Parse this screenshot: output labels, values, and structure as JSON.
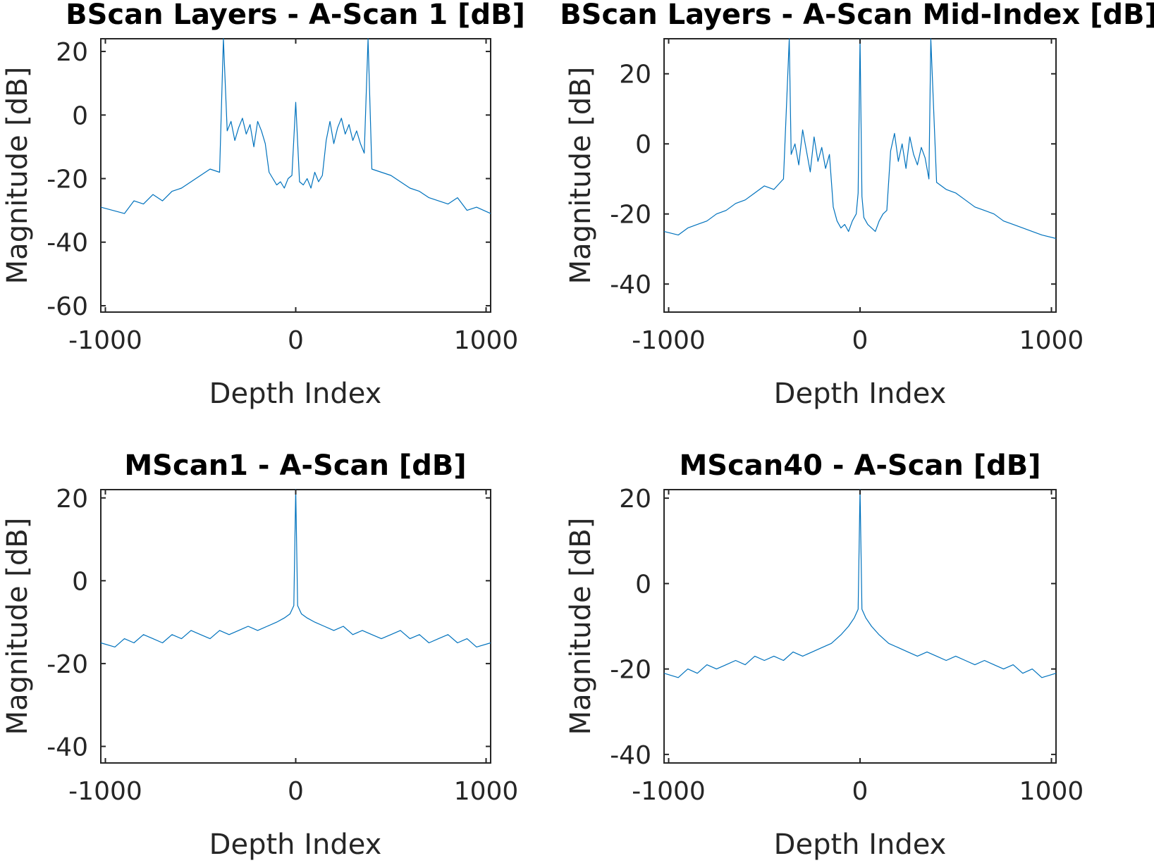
{
  "chart_data": [
    {
      "type": "line",
      "title": "BScan Layers - A-Scan 1 [dB]",
      "xlabel": "Depth Index",
      "ylabel": "Magnitude [dB]",
      "xlim": [
        -1024,
        1024
      ],
      "ylim": [
        -62,
        24
      ],
      "xticks": [
        -1000,
        0,
        1000
      ],
      "xtick_labels": [
        "-1000",
        "0",
        "1000"
      ],
      "yticks": [
        20,
        0,
        -20,
        -40,
        -60
      ],
      "ytick_labels": [
        "20",
        "0",
        "-20",
        "-40",
        "-60"
      ],
      "grid": false,
      "color": "#0072BD",
      "series": [
        {
          "x": [
            -1024,
            -900,
            -850,
            -800,
            -750,
            -700,
            -650,
            -600,
            -550,
            -500,
            -450,
            -400,
            -380,
            -360,
            -340,
            -320,
            -300,
            -280,
            -260,
            -240,
            -220,
            -200,
            -180,
            -160,
            -140,
            -120,
            -100,
            -80,
            -60,
            -40,
            -20,
            0,
            20,
            40,
            60,
            80,
            100,
            120,
            140,
            160,
            180,
            200,
            220,
            240,
            260,
            280,
            300,
            320,
            340,
            360,
            380,
            400,
            450,
            500,
            550,
            600,
            650,
            700,
            750,
            800,
            850,
            900,
            950,
            1024
          ],
          "y": [
            -29,
            -31,
            -27,
            -28,
            -25,
            -27,
            -24,
            -23,
            -21,
            -19,
            -17,
            -18,
            24,
            -5,
            -2,
            -8,
            -4,
            -1,
            -6,
            -3,
            -10,
            -2,
            -5,
            -9,
            -18,
            -20,
            -22,
            -21,
            -23,
            -20,
            -19,
            4,
            -21,
            -22,
            -20,
            -23,
            -18,
            -21,
            -19,
            -8,
            -2,
            -9,
            -4,
            -1,
            -6,
            -3,
            -8,
            -5,
            -9,
            -12,
            24,
            -17,
            -18,
            -19,
            -21,
            -23,
            -24,
            -26,
            -27,
            -28,
            -26,
            -30,
            -29,
            -31
          ]
        }
      ]
    },
    {
      "type": "line",
      "title": "BScan Layers - A-Scan Mid-Index [dB]",
      "xlabel": "Depth Index",
      "ylabel": "Magnitude [dB]",
      "xlim": [
        -1024,
        1024
      ],
      "ylim": [
        -48,
        30
      ],
      "xticks": [
        -1000,
        0,
        1000
      ],
      "xtick_labels": [
        "-1000",
        "0",
        "1000"
      ],
      "yticks": [
        20,
        0,
        -20,
        -40
      ],
      "ytick_labels": [
        "20",
        "0",
        "-20",
        "-40"
      ],
      "grid": false,
      "color": "#0072BD",
      "series": [
        {
          "x": [
            -1024,
            -950,
            -900,
            -850,
            -800,
            -750,
            -700,
            -650,
            -600,
            -550,
            -500,
            -450,
            -400,
            -370,
            -360,
            -340,
            -320,
            -300,
            -280,
            -260,
            -240,
            -220,
            -200,
            -180,
            -160,
            -140,
            -120,
            -100,
            -80,
            -60,
            -40,
            -20,
            -10,
            0,
            10,
            20,
            40,
            60,
            80,
            100,
            120,
            140,
            160,
            180,
            200,
            220,
            240,
            260,
            280,
            300,
            320,
            340,
            360,
            370,
            400,
            450,
            500,
            550,
            600,
            650,
            700,
            750,
            800,
            850,
            900,
            950,
            1024
          ],
          "y": [
            -25,
            -26,
            -24,
            -23,
            -22,
            -20,
            -19,
            -17,
            -16,
            -14,
            -12,
            -13,
            -10,
            30,
            -3,
            0,
            -6,
            4,
            -2,
            -8,
            2,
            -5,
            -1,
            -7,
            -3,
            -18,
            -22,
            -24,
            -23,
            -25,
            -22,
            -20,
            -14,
            30,
            -15,
            -21,
            -23,
            -24,
            -25,
            -22,
            -20,
            -19,
            -2,
            3,
            -5,
            0,
            -7,
            2,
            -3,
            -6,
            -1,
            -4,
            -10,
            30,
            -11,
            -13,
            -14,
            -16,
            -18,
            -19,
            -20,
            -22,
            -23,
            -24,
            -25,
            -26,
            -27
          ]
        }
      ]
    },
    {
      "type": "line",
      "title": "MScan1 - A-Scan [dB]",
      "xlabel": "Depth Index",
      "ylabel": "Magnitude [dB]",
      "xlim": [
        -1024,
        1024
      ],
      "ylim": [
        -44,
        22
      ],
      "xticks": [
        -1000,
        0,
        1000
      ],
      "xtick_labels": [
        "-1000",
        "0",
        "1000"
      ],
      "yticks": [
        20,
        0,
        -20,
        -40
      ],
      "ytick_labels": [
        "20",
        "0",
        "-20",
        "-40"
      ],
      "grid": false,
      "color": "#0072BD",
      "series": [
        {
          "x": [
            -1024,
            -950,
            -900,
            -850,
            -800,
            -750,
            -700,
            -650,
            -600,
            -550,
            -500,
            -450,
            -400,
            -350,
            -300,
            -250,
            -200,
            -150,
            -100,
            -60,
            -30,
            -10,
            0,
            10,
            30,
            60,
            100,
            150,
            200,
            250,
            300,
            350,
            400,
            450,
            500,
            550,
            600,
            650,
            700,
            750,
            800,
            850,
            900,
            950,
            1024
          ],
          "y": [
            -15,
            -16,
            -14,
            -15,
            -13,
            -14,
            -15,
            -13,
            -14,
            -12,
            -13,
            -14,
            -12,
            -13,
            -12,
            -11,
            -12,
            -11,
            -10,
            -9,
            -8,
            -6,
            22,
            -6,
            -8,
            -9,
            -10,
            -11,
            -12,
            -11,
            -13,
            -12,
            -13,
            -14,
            -13,
            -12,
            -14,
            -13,
            -15,
            -14,
            -13,
            -15,
            -14,
            -16,
            -15
          ]
        }
      ]
    },
    {
      "type": "line",
      "title": "MScan40 - A-Scan [dB]",
      "xlabel": "Depth Index",
      "ylabel": "Magnitude [dB]",
      "xlim": [
        -1024,
        1024
      ],
      "ylim": [
        -42,
        22
      ],
      "xticks": [
        -1000,
        0,
        1000
      ],
      "xtick_labels": [
        "-1000",
        "0",
        "1000"
      ],
      "yticks": [
        20,
        0,
        -20,
        -40
      ],
      "ytick_labels": [
        "20",
        "0",
        "-20",
        "-40"
      ],
      "grid": false,
      "color": "#0072BD",
      "series": [
        {
          "x": [
            -1024,
            -950,
            -900,
            -850,
            -800,
            -750,
            -700,
            -650,
            -600,
            -550,
            -500,
            -450,
            -400,
            -350,
            -300,
            -250,
            -200,
            -150,
            -100,
            -60,
            -30,
            -10,
            0,
            10,
            30,
            60,
            100,
            150,
            200,
            250,
            300,
            350,
            400,
            450,
            500,
            550,
            600,
            650,
            700,
            750,
            800,
            850,
            900,
            950,
            1024
          ],
          "y": [
            -21,
            -22,
            -20,
            -21,
            -19,
            -20,
            -19,
            -18,
            -19,
            -17,
            -18,
            -17,
            -18,
            -16,
            -17,
            -16,
            -15,
            -14,
            -12,
            -10,
            -8,
            -6,
            22,
            -6,
            -8,
            -10,
            -12,
            -14,
            -15,
            -16,
            -17,
            -16,
            -17,
            -18,
            -17,
            -18,
            -19,
            -18,
            -19,
            -20,
            -19,
            -21,
            -20,
            -22,
            -21
          ]
        }
      ]
    }
  ]
}
